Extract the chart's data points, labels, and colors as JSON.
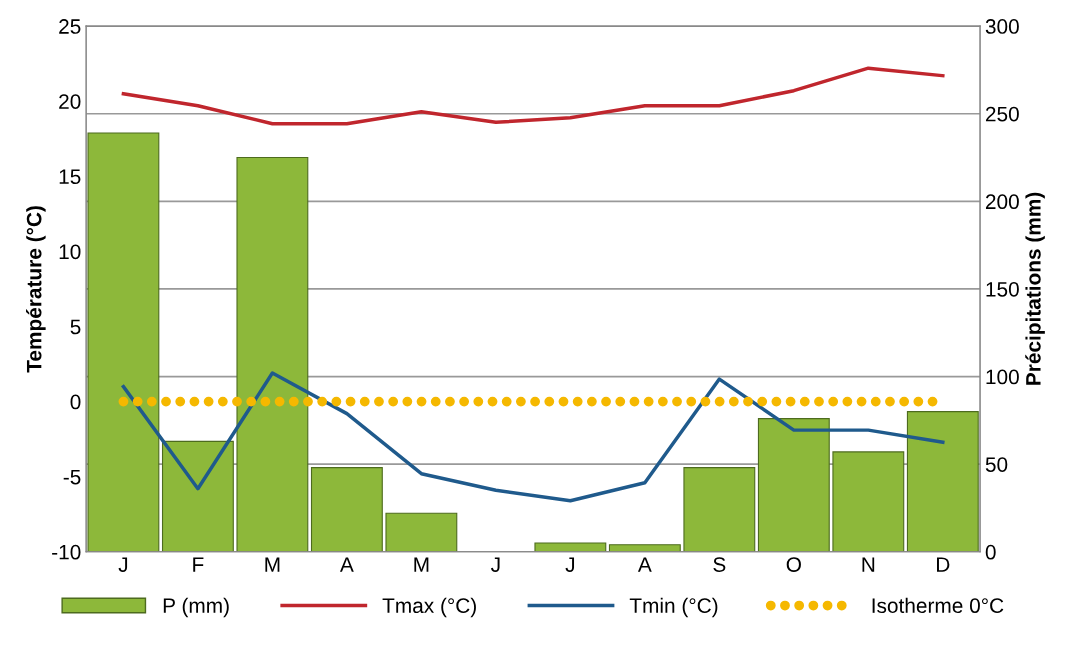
{
  "chart_data": {
    "type": "bar",
    "ylabel": "Température (°C)",
    "y2label": "Précipitations (mm)",
    "categories": [
      "J",
      "F",
      "M",
      "A",
      "M",
      "J",
      "J",
      "A",
      "S",
      "O",
      "N",
      "D"
    ],
    "series": [
      {
        "name": "P (mm)",
        "axis": "y2",
        "color": "#8db83a",
        "values": [
          239,
          63,
          225,
          48,
          22,
          0,
          5,
          4,
          48,
          76,
          57,
          80
        ]
      },
      {
        "name": "Tmax (°C)",
        "type": "line",
        "color": "#c0262d",
        "values": [
          20.5,
          19.7,
          18.5,
          18.5,
          19.3,
          18.6,
          18.9,
          19.7,
          19.7,
          20.7,
          22.2,
          21.7
        ]
      },
      {
        "name": "Tmin (°C)",
        "type": "line",
        "color": "#1f5a8c",
        "values": [
          1.0,
          -5.8,
          1.9,
          -0.8,
          -4.8,
          -5.9,
          -6.6,
          -5.4,
          1.5,
          -1.9,
          -1.9,
          -2.7
        ]
      },
      {
        "name": "Isotherme 0°C",
        "type": "line",
        "line_style": "dotted",
        "color": "#f5b800",
        "values": [
          0,
          0,
          0,
          0,
          0,
          0,
          0,
          0,
          0,
          0,
          0,
          0
        ]
      }
    ],
    "ylim": [
      -10,
      25
    ],
    "yticks": [
      -10,
      -5,
      0,
      5,
      10,
      15,
      20,
      25
    ],
    "y2lim": [
      0,
      300
    ],
    "y2ticks": [
      0,
      50,
      100,
      150,
      200,
      250,
      300
    ],
    "grid": "y",
    "legend": "bottom"
  }
}
